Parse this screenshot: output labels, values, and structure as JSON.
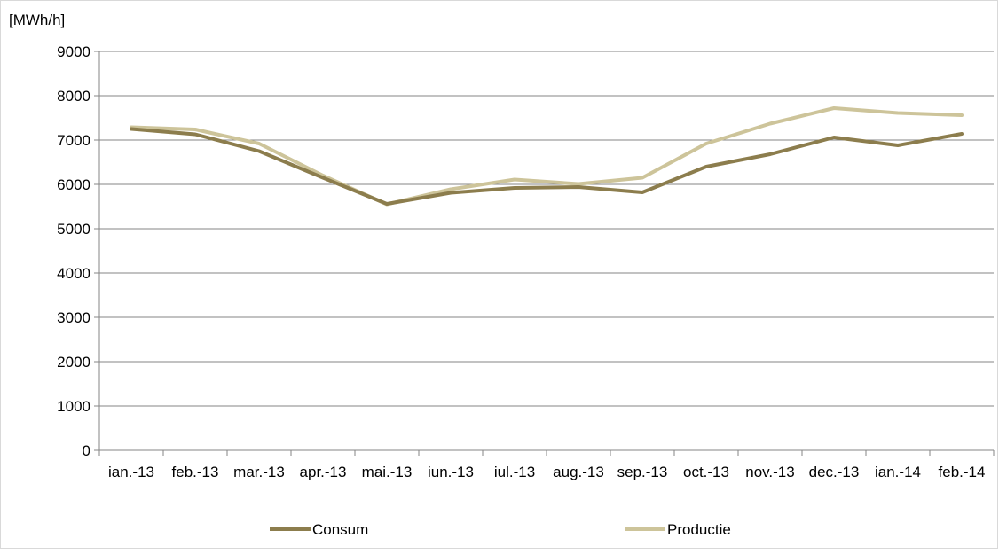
{
  "chart_data": {
    "type": "line",
    "title": "",
    "xlabel": "",
    "ylabel": "[MWh/h]",
    "ylim": [
      0,
      9000
    ],
    "yticks": [
      0,
      1000,
      2000,
      3000,
      4000,
      5000,
      6000,
      7000,
      8000,
      9000
    ],
    "grid": true,
    "legend_position": "bottom",
    "categories": [
      "ian.-13",
      "feb.-13",
      "mar.-13",
      "apr.-13",
      "mai.-13",
      "iun.-13",
      "iul.-13",
      "aug.-13",
      "sep.-13",
      "oct.-13",
      "nov.-13",
      "dec.-13",
      "ian.-14",
      "feb.-14"
    ],
    "series": [
      {
        "name": "Consum",
        "color": "#8c7d4d",
        "values": [
          7250,
          7130,
          6750,
          6150,
          5560,
          5810,
          5920,
          5940,
          5820,
          6400,
          6680,
          7060,
          6880,
          7140
        ]
      },
      {
        "name": "Productie",
        "color": "#cdc49a",
        "values": [
          7290,
          7240,
          6920,
          6200,
          5550,
          5890,
          6110,
          6010,
          6150,
          6920,
          7370,
          7720,
          7610,
          7560
        ]
      }
    ]
  }
}
